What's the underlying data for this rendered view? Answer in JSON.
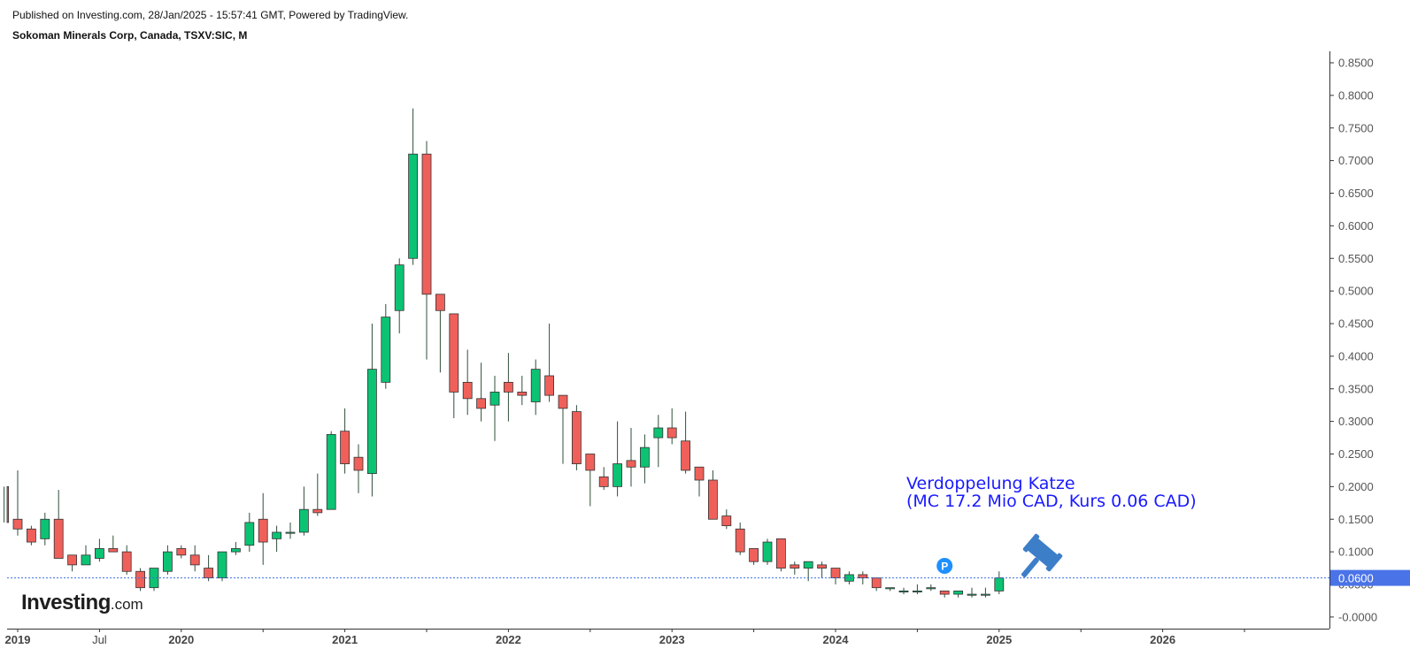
{
  "header": {
    "published": "Published on Investing.com, 28/Jan/2025 - 15:57:41 GMT, Powered by TradingView.",
    "symbol": "Sokoman Minerals Corp, Canada, TSXV:SIC, M"
  },
  "annotation": {
    "line1": "Verdoppelung Katze",
    "line2": "(MC 17.2 Mio CAD, Kurs 0.06 CAD)"
  },
  "logo": {
    "brand": "Investing",
    "suffix": ".com"
  },
  "marker": {
    "label": "P"
  },
  "colors": {
    "up": "#0cc374",
    "down": "#f0605a",
    "wick": "#2f4f3a",
    "price_line": "#3b6fe0",
    "axis_text": "#555555",
    "annotation": "#1a1aff"
  },
  "chart_data": {
    "type": "candlestick",
    "title": "Sokoman Minerals Corp, Canada, TSXV:SIC, M",
    "interval": "monthly",
    "ylim": [
      -0.01,
      0.86
    ],
    "y_ticks": [
      "0.8500",
      "0.8000",
      "0.7500",
      "0.7000",
      "0.6500",
      "0.6000",
      "0.5500",
      "0.5000",
      "0.4500",
      "0.4000",
      "0.3500",
      "0.3000",
      "0.2500",
      "0.2000",
      "0.1500",
      "0.1000",
      "0.0500",
      "-0.0000"
    ],
    "x_ticks": [
      {
        "label": "2019",
        "date": "2019-01",
        "bold": true
      },
      {
        "label": "Jul",
        "date": "2019-07",
        "bold": false
      },
      {
        "label": "2020",
        "date": "2020-01",
        "bold": true
      },
      {
        "label": "",
        "date": "2020-07",
        "bold": false
      },
      {
        "label": "2021",
        "date": "2021-01",
        "bold": true
      },
      {
        "label": "",
        "date": "2021-07",
        "bold": false
      },
      {
        "label": "2022",
        "date": "2022-01",
        "bold": true
      },
      {
        "label": "",
        "date": "2022-07",
        "bold": false
      },
      {
        "label": "2023",
        "date": "2023-01",
        "bold": true
      },
      {
        "label": "",
        "date": "2023-07",
        "bold": false
      },
      {
        "label": "2024",
        "date": "2024-01",
        "bold": true
      },
      {
        "label": "",
        "date": "2024-07",
        "bold": false
      },
      {
        "label": "2025",
        "date": "2025-01",
        "bold": true
      },
      {
        "label": "",
        "date": "2025-07",
        "bold": false
      },
      {
        "label": "2026",
        "date": "2026-01",
        "bold": true
      },
      {
        "label": "",
        "date": "2026-07",
        "bold": false
      }
    ],
    "last_price": "0.0600",
    "marker_date": "2024-09",
    "candles": [
      {
        "date": "2018-12",
        "o": 0.2,
        "h": 0.2,
        "l": 0.145,
        "c": 0.145
      },
      {
        "date": "2019-01",
        "o": 0.15,
        "h": 0.225,
        "l": 0.125,
        "c": 0.135
      },
      {
        "date": "2019-02",
        "o": 0.135,
        "h": 0.14,
        "l": 0.11,
        "c": 0.115
      },
      {
        "date": "2019-03",
        "o": 0.12,
        "h": 0.16,
        "l": 0.11,
        "c": 0.15
      },
      {
        "date": "2019-04",
        "o": 0.15,
        "h": 0.195,
        "l": 0.09,
        "c": 0.09
      },
      {
        "date": "2019-05",
        "o": 0.095,
        "h": 0.095,
        "l": 0.07,
        "c": 0.08
      },
      {
        "date": "2019-06",
        "o": 0.08,
        "h": 0.11,
        "l": 0.08,
        "c": 0.095
      },
      {
        "date": "2019-07",
        "o": 0.09,
        "h": 0.12,
        "l": 0.085,
        "c": 0.105
      },
      {
        "date": "2019-08",
        "o": 0.105,
        "h": 0.125,
        "l": 0.1,
        "c": 0.1
      },
      {
        "date": "2019-09",
        "o": 0.1,
        "h": 0.11,
        "l": 0.065,
        "c": 0.07
      },
      {
        "date": "2019-10",
        "o": 0.07,
        "h": 0.075,
        "l": 0.04,
        "c": 0.045
      },
      {
        "date": "2019-11",
        "o": 0.045,
        "h": 0.075,
        "l": 0.04,
        "c": 0.075
      },
      {
        "date": "2019-12",
        "o": 0.07,
        "h": 0.11,
        "l": 0.065,
        "c": 0.1
      },
      {
        "date": "2020-01",
        "o": 0.105,
        "h": 0.11,
        "l": 0.09,
        "c": 0.095
      },
      {
        "date": "2020-02",
        "o": 0.095,
        "h": 0.11,
        "l": 0.07,
        "c": 0.08
      },
      {
        "date": "2020-03",
        "o": 0.075,
        "h": 0.095,
        "l": 0.055,
        "c": 0.06
      },
      {
        "date": "2020-04",
        "o": 0.06,
        "h": 0.1,
        "l": 0.055,
        "c": 0.1
      },
      {
        "date": "2020-05",
        "o": 0.1,
        "h": 0.115,
        "l": 0.095,
        "c": 0.105
      },
      {
        "date": "2020-06",
        "o": 0.11,
        "h": 0.16,
        "l": 0.1,
        "c": 0.145
      },
      {
        "date": "2020-07",
        "o": 0.15,
        "h": 0.19,
        "l": 0.08,
        "c": 0.115
      },
      {
        "date": "2020-08",
        "o": 0.12,
        "h": 0.14,
        "l": 0.1,
        "c": 0.13
      },
      {
        "date": "2020-09",
        "o": 0.13,
        "h": 0.145,
        "l": 0.12,
        "c": 0.13
      },
      {
        "date": "2020-10",
        "o": 0.13,
        "h": 0.2,
        "l": 0.125,
        "c": 0.165
      },
      {
        "date": "2020-11",
        "o": 0.165,
        "h": 0.22,
        "l": 0.155,
        "c": 0.16
      },
      {
        "date": "2020-12",
        "o": 0.165,
        "h": 0.285,
        "l": 0.165,
        "c": 0.28
      },
      {
        "date": "2021-01",
        "o": 0.285,
        "h": 0.32,
        "l": 0.22,
        "c": 0.235
      },
      {
        "date": "2021-02",
        "o": 0.245,
        "h": 0.265,
        "l": 0.19,
        "c": 0.225
      },
      {
        "date": "2021-03",
        "o": 0.22,
        "h": 0.45,
        "l": 0.185,
        "c": 0.38
      },
      {
        "date": "2021-04",
        "o": 0.36,
        "h": 0.48,
        "l": 0.35,
        "c": 0.46
      },
      {
        "date": "2021-05",
        "o": 0.47,
        "h": 0.55,
        "l": 0.435,
        "c": 0.54
      },
      {
        "date": "2021-06",
        "o": 0.55,
        "h": 0.78,
        "l": 0.54,
        "c": 0.71
      },
      {
        "date": "2021-07",
        "o": 0.71,
        "h": 0.73,
        "l": 0.395,
        "c": 0.495
      },
      {
        "date": "2021-08",
        "o": 0.495,
        "h": 0.495,
        "l": 0.375,
        "c": 0.47
      },
      {
        "date": "2021-09",
        "o": 0.465,
        "h": 0.465,
        "l": 0.305,
        "c": 0.345
      },
      {
        "date": "2021-10",
        "o": 0.36,
        "h": 0.41,
        "l": 0.31,
        "c": 0.335
      },
      {
        "date": "2021-11",
        "o": 0.335,
        "h": 0.39,
        "l": 0.3,
        "c": 0.32
      },
      {
        "date": "2021-12",
        "o": 0.325,
        "h": 0.37,
        "l": 0.27,
        "c": 0.345
      },
      {
        "date": "2022-01",
        "o": 0.36,
        "h": 0.405,
        "l": 0.3,
        "c": 0.345
      },
      {
        "date": "2022-02",
        "o": 0.345,
        "h": 0.37,
        "l": 0.325,
        "c": 0.34
      },
      {
        "date": "2022-03",
        "o": 0.33,
        "h": 0.395,
        "l": 0.31,
        "c": 0.38
      },
      {
        "date": "2022-04",
        "o": 0.37,
        "h": 0.45,
        "l": 0.33,
        "c": 0.34
      },
      {
        "date": "2022-05",
        "o": 0.34,
        "h": 0.34,
        "l": 0.235,
        "c": 0.32
      },
      {
        "date": "2022-06",
        "o": 0.315,
        "h": 0.325,
        "l": 0.225,
        "c": 0.235
      },
      {
        "date": "2022-07",
        "o": 0.25,
        "h": 0.25,
        "l": 0.17,
        "c": 0.225
      },
      {
        "date": "2022-08",
        "o": 0.215,
        "h": 0.23,
        "l": 0.195,
        "c": 0.2
      },
      {
        "date": "2022-09",
        "o": 0.2,
        "h": 0.3,
        "l": 0.185,
        "c": 0.235
      },
      {
        "date": "2022-10",
        "o": 0.24,
        "h": 0.29,
        "l": 0.2,
        "c": 0.23
      },
      {
        "date": "2022-11",
        "o": 0.23,
        "h": 0.28,
        "l": 0.205,
        "c": 0.26
      },
      {
        "date": "2022-12",
        "o": 0.275,
        "h": 0.31,
        "l": 0.23,
        "c": 0.29
      },
      {
        "date": "2023-01",
        "o": 0.29,
        "h": 0.32,
        "l": 0.265,
        "c": 0.275
      },
      {
        "date": "2023-02",
        "o": 0.27,
        "h": 0.315,
        "l": 0.22,
        "c": 0.225
      },
      {
        "date": "2023-03",
        "o": 0.23,
        "h": 0.23,
        "l": 0.185,
        "c": 0.21
      },
      {
        "date": "2023-04",
        "o": 0.21,
        "h": 0.225,
        "l": 0.15,
        "c": 0.15
      },
      {
        "date": "2023-05",
        "o": 0.155,
        "h": 0.165,
        "l": 0.135,
        "c": 0.14
      },
      {
        "date": "2023-06",
        "o": 0.135,
        "h": 0.145,
        "l": 0.095,
        "c": 0.1
      },
      {
        "date": "2023-07",
        "o": 0.105,
        "h": 0.105,
        "l": 0.08,
        "c": 0.085
      },
      {
        "date": "2023-08",
        "o": 0.085,
        "h": 0.12,
        "l": 0.08,
        "c": 0.115
      },
      {
        "date": "2023-09",
        "o": 0.12,
        "h": 0.12,
        "l": 0.07,
        "c": 0.075
      },
      {
        "date": "2023-10",
        "o": 0.08,
        "h": 0.085,
        "l": 0.065,
        "c": 0.075
      },
      {
        "date": "2023-11",
        "o": 0.075,
        "h": 0.085,
        "l": 0.055,
        "c": 0.085
      },
      {
        "date": "2023-12",
        "o": 0.08,
        "h": 0.085,
        "l": 0.06,
        "c": 0.075
      },
      {
        "date": "2024-01",
        "o": 0.075,
        "h": 0.075,
        "l": 0.05,
        "c": 0.06
      },
      {
        "date": "2024-02",
        "o": 0.055,
        "h": 0.07,
        "l": 0.05,
        "c": 0.065
      },
      {
        "date": "2024-03",
        "o": 0.065,
        "h": 0.07,
        "l": 0.05,
        "c": 0.06
      },
      {
        "date": "2024-04",
        "o": 0.06,
        "h": 0.06,
        "l": 0.04,
        "c": 0.045
      },
      {
        "date": "2024-05",
        "o": 0.045,
        "h": 0.045,
        "l": 0.04,
        "c": 0.045
      },
      {
        "date": "2024-06",
        "o": 0.04,
        "h": 0.045,
        "l": 0.035,
        "c": 0.04
      },
      {
        "date": "2024-07",
        "o": 0.04,
        "h": 0.05,
        "l": 0.035,
        "c": 0.04
      },
      {
        "date": "2024-08",
        "o": 0.045,
        "h": 0.05,
        "l": 0.04,
        "c": 0.045
      },
      {
        "date": "2024-09",
        "o": 0.04,
        "h": 0.04,
        "l": 0.03,
        "c": 0.035
      },
      {
        "date": "2024-10",
        "o": 0.035,
        "h": 0.04,
        "l": 0.03,
        "c": 0.04
      },
      {
        "date": "2024-11",
        "o": 0.035,
        "h": 0.045,
        "l": 0.03,
        "c": 0.035
      },
      {
        "date": "2024-12",
        "o": 0.035,
        "h": 0.045,
        "l": 0.03,
        "c": 0.035
      },
      {
        "date": "2025-01",
        "o": 0.04,
        "h": 0.07,
        "l": 0.035,
        "c": 0.06
      }
    ]
  }
}
